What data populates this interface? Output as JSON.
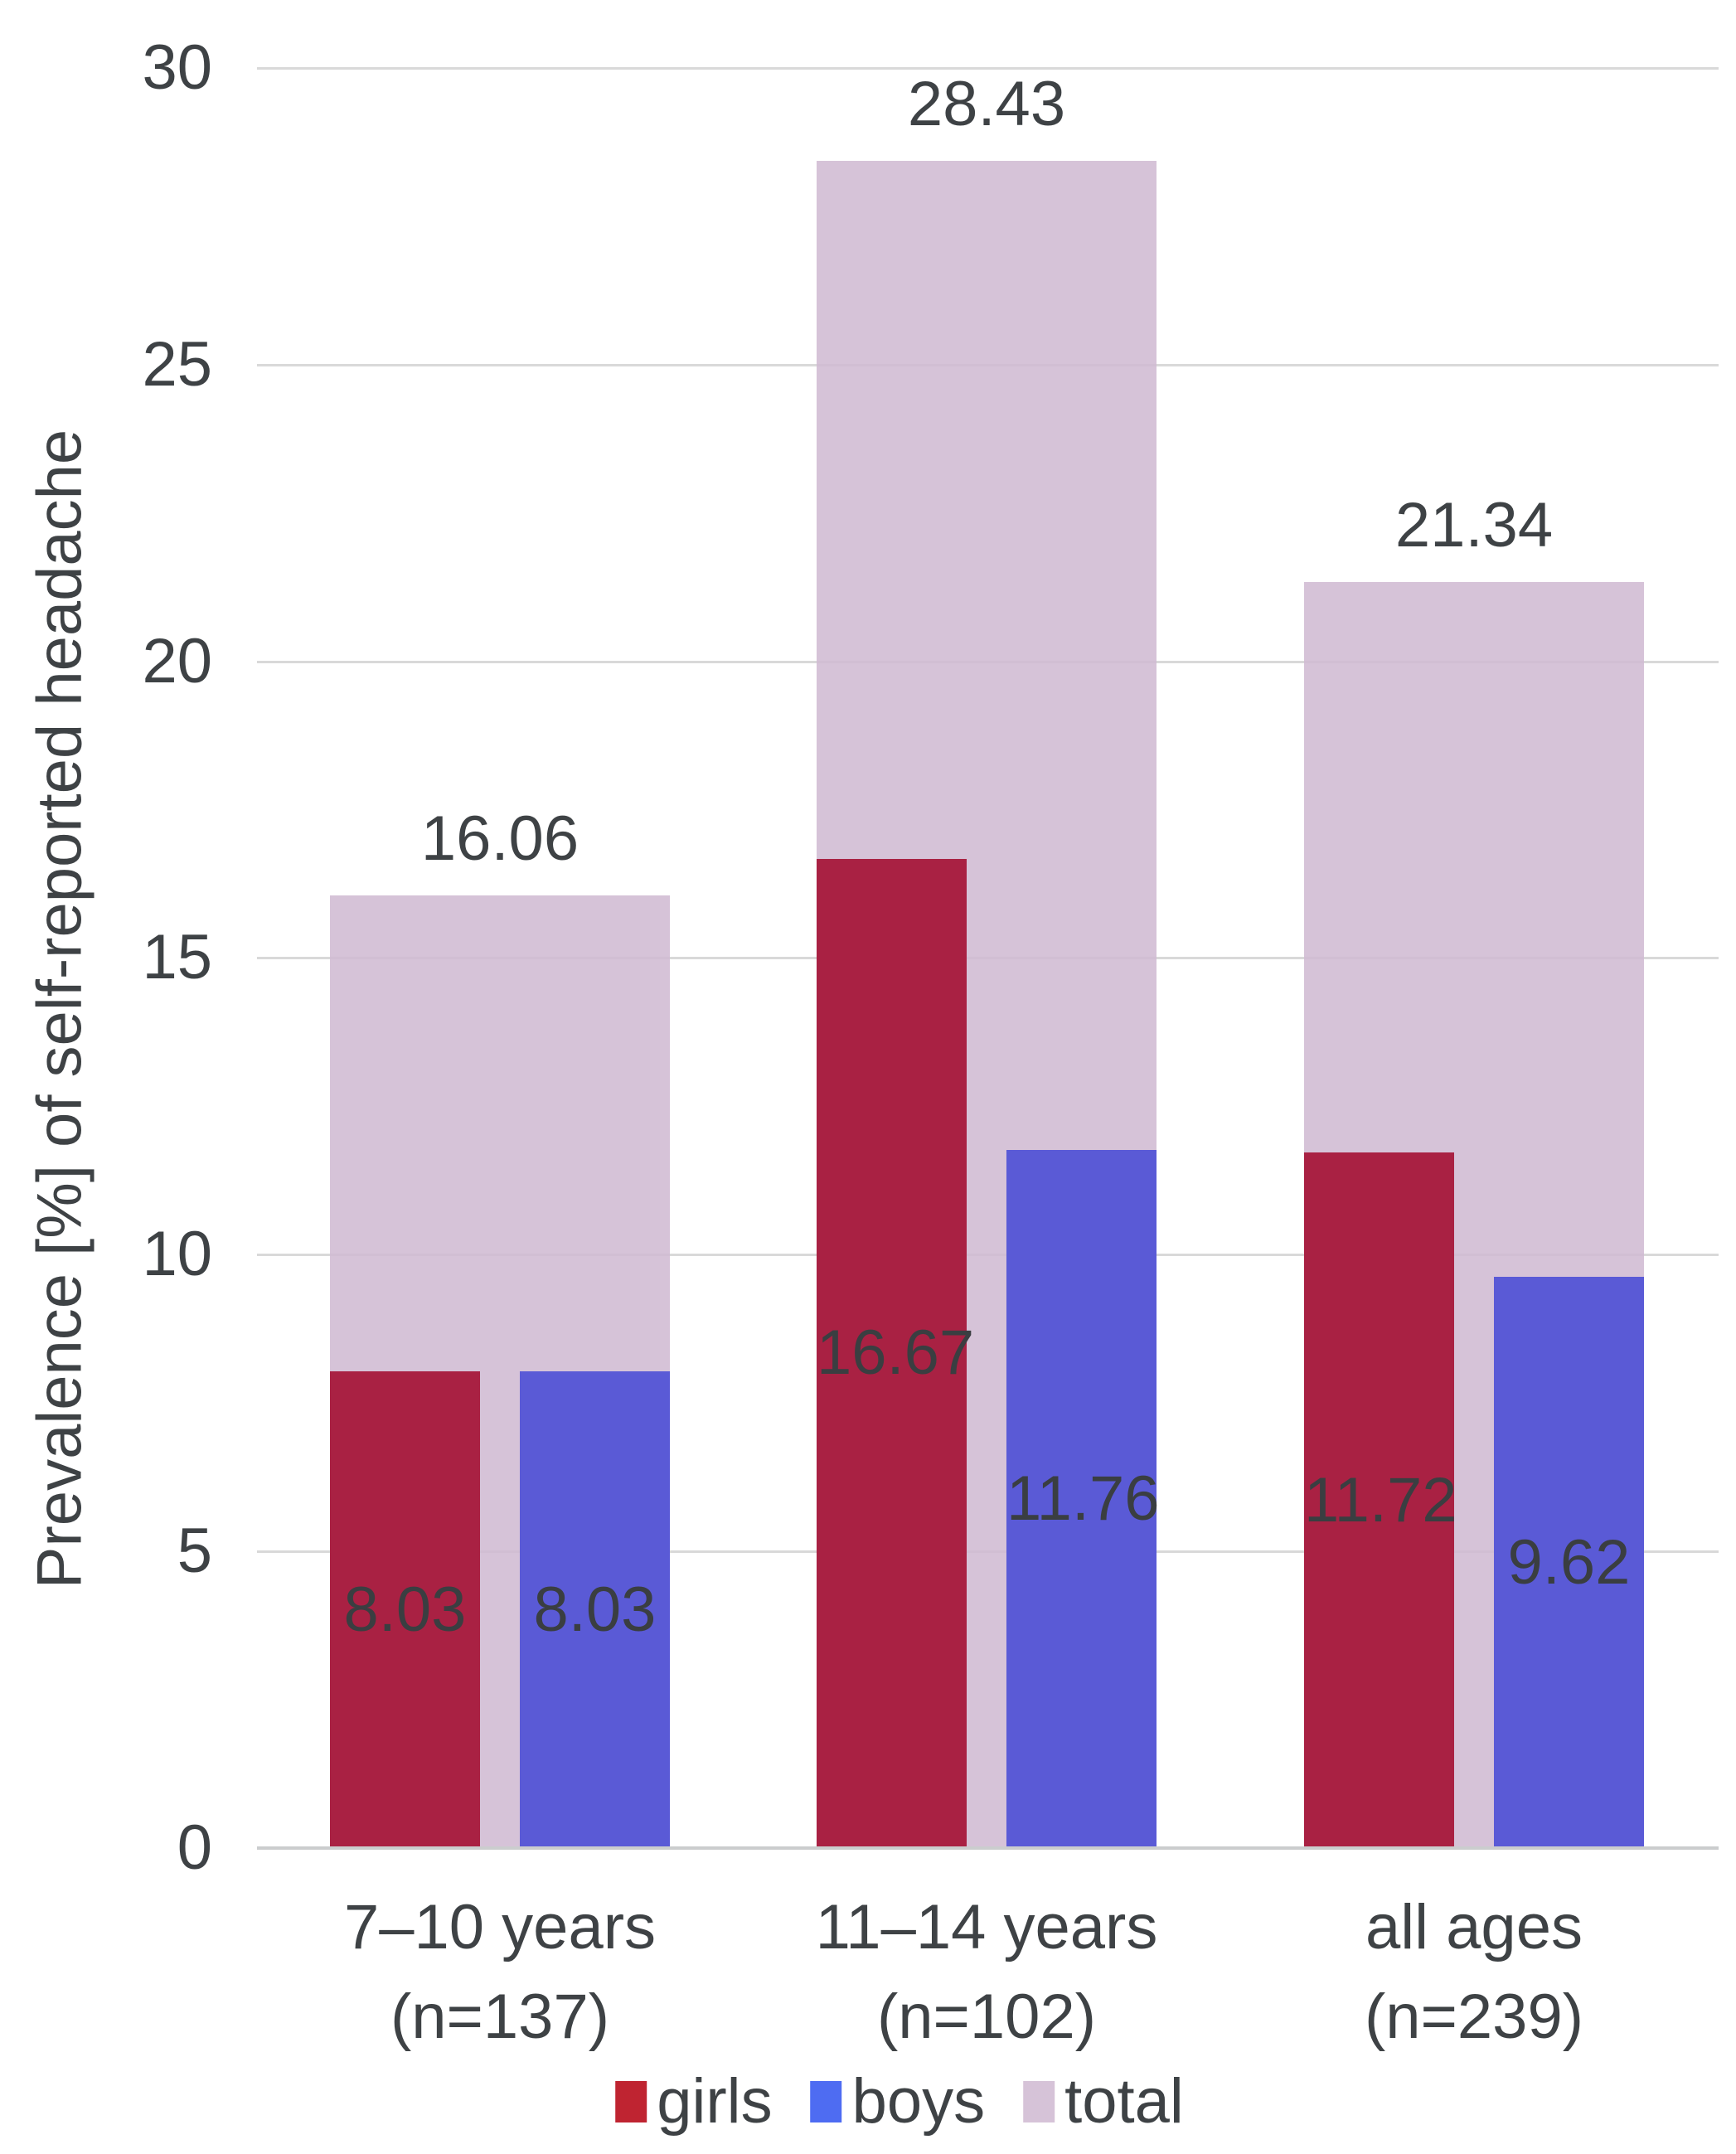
{
  "chart_data": {
    "type": "bar",
    "title": "",
    "xlabel": "",
    "ylabel": "Prevalence [%] of self-reported headache",
    "ylim": [
      0,
      30
    ],
    "yticks": [
      0,
      5,
      10,
      15,
      20,
      25,
      30
    ],
    "grid": true,
    "legend_position": "bottom",
    "categories": [
      {
        "label": "7–10 years",
        "sublabel": "(n=137)"
      },
      {
        "label": "11–14 years",
        "sublabel": "(n=102)"
      },
      {
        "label": "all ages",
        "sublabel": "(n=239)"
      }
    ],
    "series": [
      {
        "name": "girls",
        "values": [
          8.03,
          16.67,
          11.72
        ],
        "bar_color": "#a92143",
        "legend_color": "#bf2431",
        "layout_role": "overlay-left"
      },
      {
        "name": "boys",
        "values": [
          8.03,
          11.76,
          9.62
        ],
        "bar_color": "#5a5ad6",
        "legend_color": "#4e6cf2",
        "layout_role": "overlay-right"
      },
      {
        "name": "total",
        "values": [
          16.06,
          28.43,
          21.34
        ],
        "bar_color": "#d6c3d8",
        "legend_color": "#d6c3d8",
        "layout_role": "background-wide"
      }
    ]
  },
  "colors": {
    "text": "#3e4245",
    "gridline": "#d9d9d9",
    "baseline": "#cbcdce",
    "background": "#ffffff"
  }
}
